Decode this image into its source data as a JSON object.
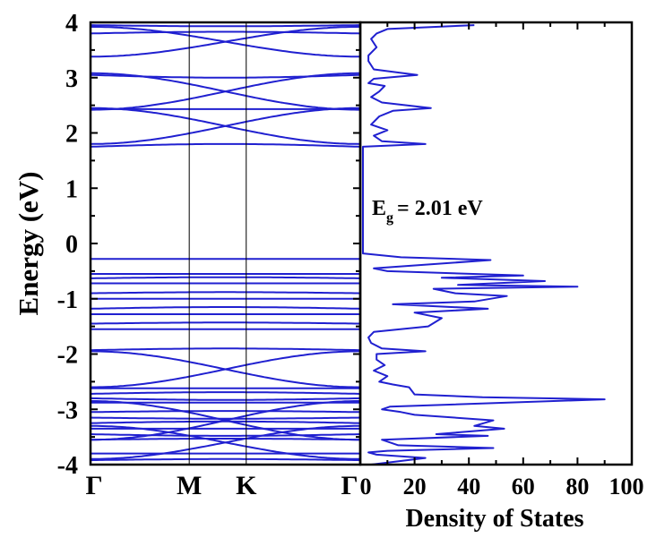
{
  "chart_data": [
    {
      "type": "line",
      "panel": "band structure",
      "ylabel": "Energy (eV)",
      "ylim": [
        -4,
        4
      ],
      "yticks": [
        "-4",
        "-3",
        "-2",
        "-1",
        "0",
        "1",
        "2",
        "3",
        "4"
      ],
      "kpoints": [
        "Γ",
        "M",
        "K",
        "Γ"
      ],
      "k_positions": [
        0,
        1,
        1.577,
        2.732
      ],
      "series_color": "#2020d0",
      "conduction_bands": [
        {
          "kind": "flat",
          "E": 1.75,
          "bow": 0.05
        },
        {
          "kind": "cross",
          "E0": 1.8,
          "E1": 2.45
        },
        {
          "kind": "cross",
          "E0": 2.45,
          "E1": 1.8
        },
        {
          "kind": "flat",
          "E": 2.43,
          "bow": 0
        },
        {
          "kind": "cross",
          "E0": 2.42,
          "E1": 3.08
        },
        {
          "kind": "cross",
          "E0": 3.08,
          "E1": 2.42
        },
        {
          "kind": "flat",
          "E": 3.05,
          "bow": -0.05
        },
        {
          "kind": "cross",
          "E0": 3.38,
          "E1": 3.92
        },
        {
          "kind": "cross",
          "E0": 3.92,
          "E1": 3.38
        },
        {
          "kind": "flat",
          "E": 3.8,
          "bow": 0.03
        },
        {
          "kind": "flat",
          "E": 3.95,
          "bow": -0.02
        }
      ],
      "valence_bands": [
        {
          "kind": "flat",
          "E": -0.28,
          "bow": 0
        },
        {
          "kind": "flat",
          "E": -0.55,
          "bow": 0
        },
        {
          "kind": "flat",
          "E": -0.63,
          "bow": 0.02
        },
        {
          "kind": "flat",
          "E": -0.72,
          "bow": 0
        },
        {
          "kind": "flat",
          "E": -0.9,
          "bow": 0.02
        },
        {
          "kind": "flat",
          "E": -1.0,
          "bow": 0
        },
        {
          "kind": "flat",
          "E": -1.18,
          "bow": 0.03
        },
        {
          "kind": "flat",
          "E": -1.28,
          "bow": 0
        },
        {
          "kind": "flat",
          "E": -1.45,
          "bow": 0.02
        },
        {
          "kind": "flat",
          "E": -1.55,
          "bow": 0
        },
        {
          "kind": "flat",
          "E": -1.93,
          "bow": 0.03
        },
        {
          "kind": "cross",
          "E0": -1.95,
          "E1": -2.6
        },
        {
          "kind": "cross",
          "E0": -2.6,
          "E1": -1.95
        },
        {
          "kind": "flat",
          "E": -2.62,
          "bow": 0
        },
        {
          "kind": "flat",
          "E": -2.72,
          "bow": 0.03
        },
        {
          "kind": "flat",
          "E": -2.8,
          "bow": -0.03
        },
        {
          "kind": "flat",
          "E": -2.88,
          "bow": 0
        },
        {
          "kind": "cross",
          "E0": -2.85,
          "E1": -3.55
        },
        {
          "kind": "cross",
          "E0": -3.55,
          "E1": -2.85
        },
        {
          "kind": "flat",
          "E": -3.05,
          "bow": 0.02
        },
        {
          "kind": "flat",
          "E": -3.15,
          "bow": -0.02
        },
        {
          "kind": "flat",
          "E": -3.25,
          "bow": 0.03
        },
        {
          "kind": "flat",
          "E": -3.35,
          "bow": 0
        },
        {
          "kind": "flat",
          "E": -3.45,
          "bow": -0.03
        },
        {
          "kind": "flat",
          "E": -3.55,
          "bow": 0.02
        },
        {
          "kind": "cross",
          "E0": -3.3,
          "E1": -3.9
        },
        {
          "kind": "cross",
          "E0": -3.9,
          "E1": -3.3
        },
        {
          "kind": "flat",
          "E": -3.8,
          "bow": 0
        },
        {
          "kind": "flat",
          "E": -3.92,
          "bow": 0.02
        }
      ]
    },
    {
      "type": "line",
      "panel": "density of states",
      "xlabel": "Density of States",
      "xlim": [
        0,
        100
      ],
      "xticks": [
        "0",
        "20",
        "40",
        "60",
        "80",
        "100"
      ],
      "ylim": [
        -4,
        4
      ],
      "series_color": "#2020d0",
      "annotation": {
        "text_main": "E",
        "text_sub": "g",
        "text_rest": "= 2.01 eV"
      },
      "points": [
        [
          4,
          -4.0
        ],
        [
          24,
          -3.88
        ],
        [
          6,
          -3.82
        ],
        [
          3,
          -3.78
        ],
        [
          10,
          -3.75
        ],
        [
          49,
          -3.7
        ],
        [
          14,
          -3.65
        ],
        [
          8,
          -3.55
        ],
        [
          47,
          -3.48
        ],
        [
          28,
          -3.45
        ],
        [
          53,
          -3.35
        ],
        [
          42,
          -3.3
        ],
        [
          49,
          -3.2
        ],
        [
          20,
          -3.1
        ],
        [
          15,
          -3.05
        ],
        [
          8,
          -3.0
        ],
        [
          11,
          -2.95
        ],
        [
          90,
          -2.82
        ],
        [
          45,
          -2.78
        ],
        [
          20,
          -2.73
        ],
        [
          18,
          -2.6
        ],
        [
          12,
          -2.55
        ],
        [
          7,
          -2.5
        ],
        [
          10,
          -2.4
        ],
        [
          5,
          -2.3
        ],
        [
          9,
          -2.2
        ],
        [
          6,
          -2.1
        ],
        [
          6,
          -2.0
        ],
        [
          24,
          -1.95
        ],
        [
          8,
          -1.9
        ],
        [
          4,
          -1.8
        ],
        [
          3,
          -1.7
        ],
        [
          5,
          -1.6
        ],
        [
          25,
          -1.5
        ],
        [
          30,
          -1.35
        ],
        [
          20,
          -1.25
        ],
        [
          47,
          -1.18
        ],
        [
          12,
          -1.1
        ],
        [
          42,
          -1.05
        ],
        [
          54,
          -0.95
        ],
        [
          35,
          -0.9
        ],
        [
          27,
          -0.82
        ],
        [
          80,
          -0.78
        ],
        [
          36,
          -0.75
        ],
        [
          68,
          -0.68
        ],
        [
          30,
          -0.62
        ],
        [
          60,
          -0.58
        ],
        [
          10,
          -0.5
        ],
        [
          5,
          -0.45
        ],
        [
          48,
          -0.3
        ],
        [
          15,
          -0.25
        ],
        [
          1,
          -0.18
        ],
        [
          1,
          1.75
        ],
        [
          24,
          1.8
        ],
        [
          8,
          1.85
        ],
        [
          5,
          1.95
        ],
        [
          10,
          2.05
        ],
        [
          4,
          2.15
        ],
        [
          7,
          2.3
        ],
        [
          12,
          2.4
        ],
        [
          26,
          2.45
        ],
        [
          8,
          2.55
        ],
        [
          4,
          2.65
        ],
        [
          7,
          2.75
        ],
        [
          9,
          2.85
        ],
        [
          3,
          2.9
        ],
        [
          5,
          2.98
        ],
        [
          21,
          3.05
        ],
        [
          5,
          3.15
        ],
        [
          3,
          3.3
        ],
        [
          3,
          3.4
        ],
        [
          6,
          3.55
        ],
        [
          4,
          3.7
        ],
        [
          6,
          3.8
        ],
        [
          10,
          3.88
        ],
        [
          42,
          3.95
        ]
      ]
    }
  ]
}
